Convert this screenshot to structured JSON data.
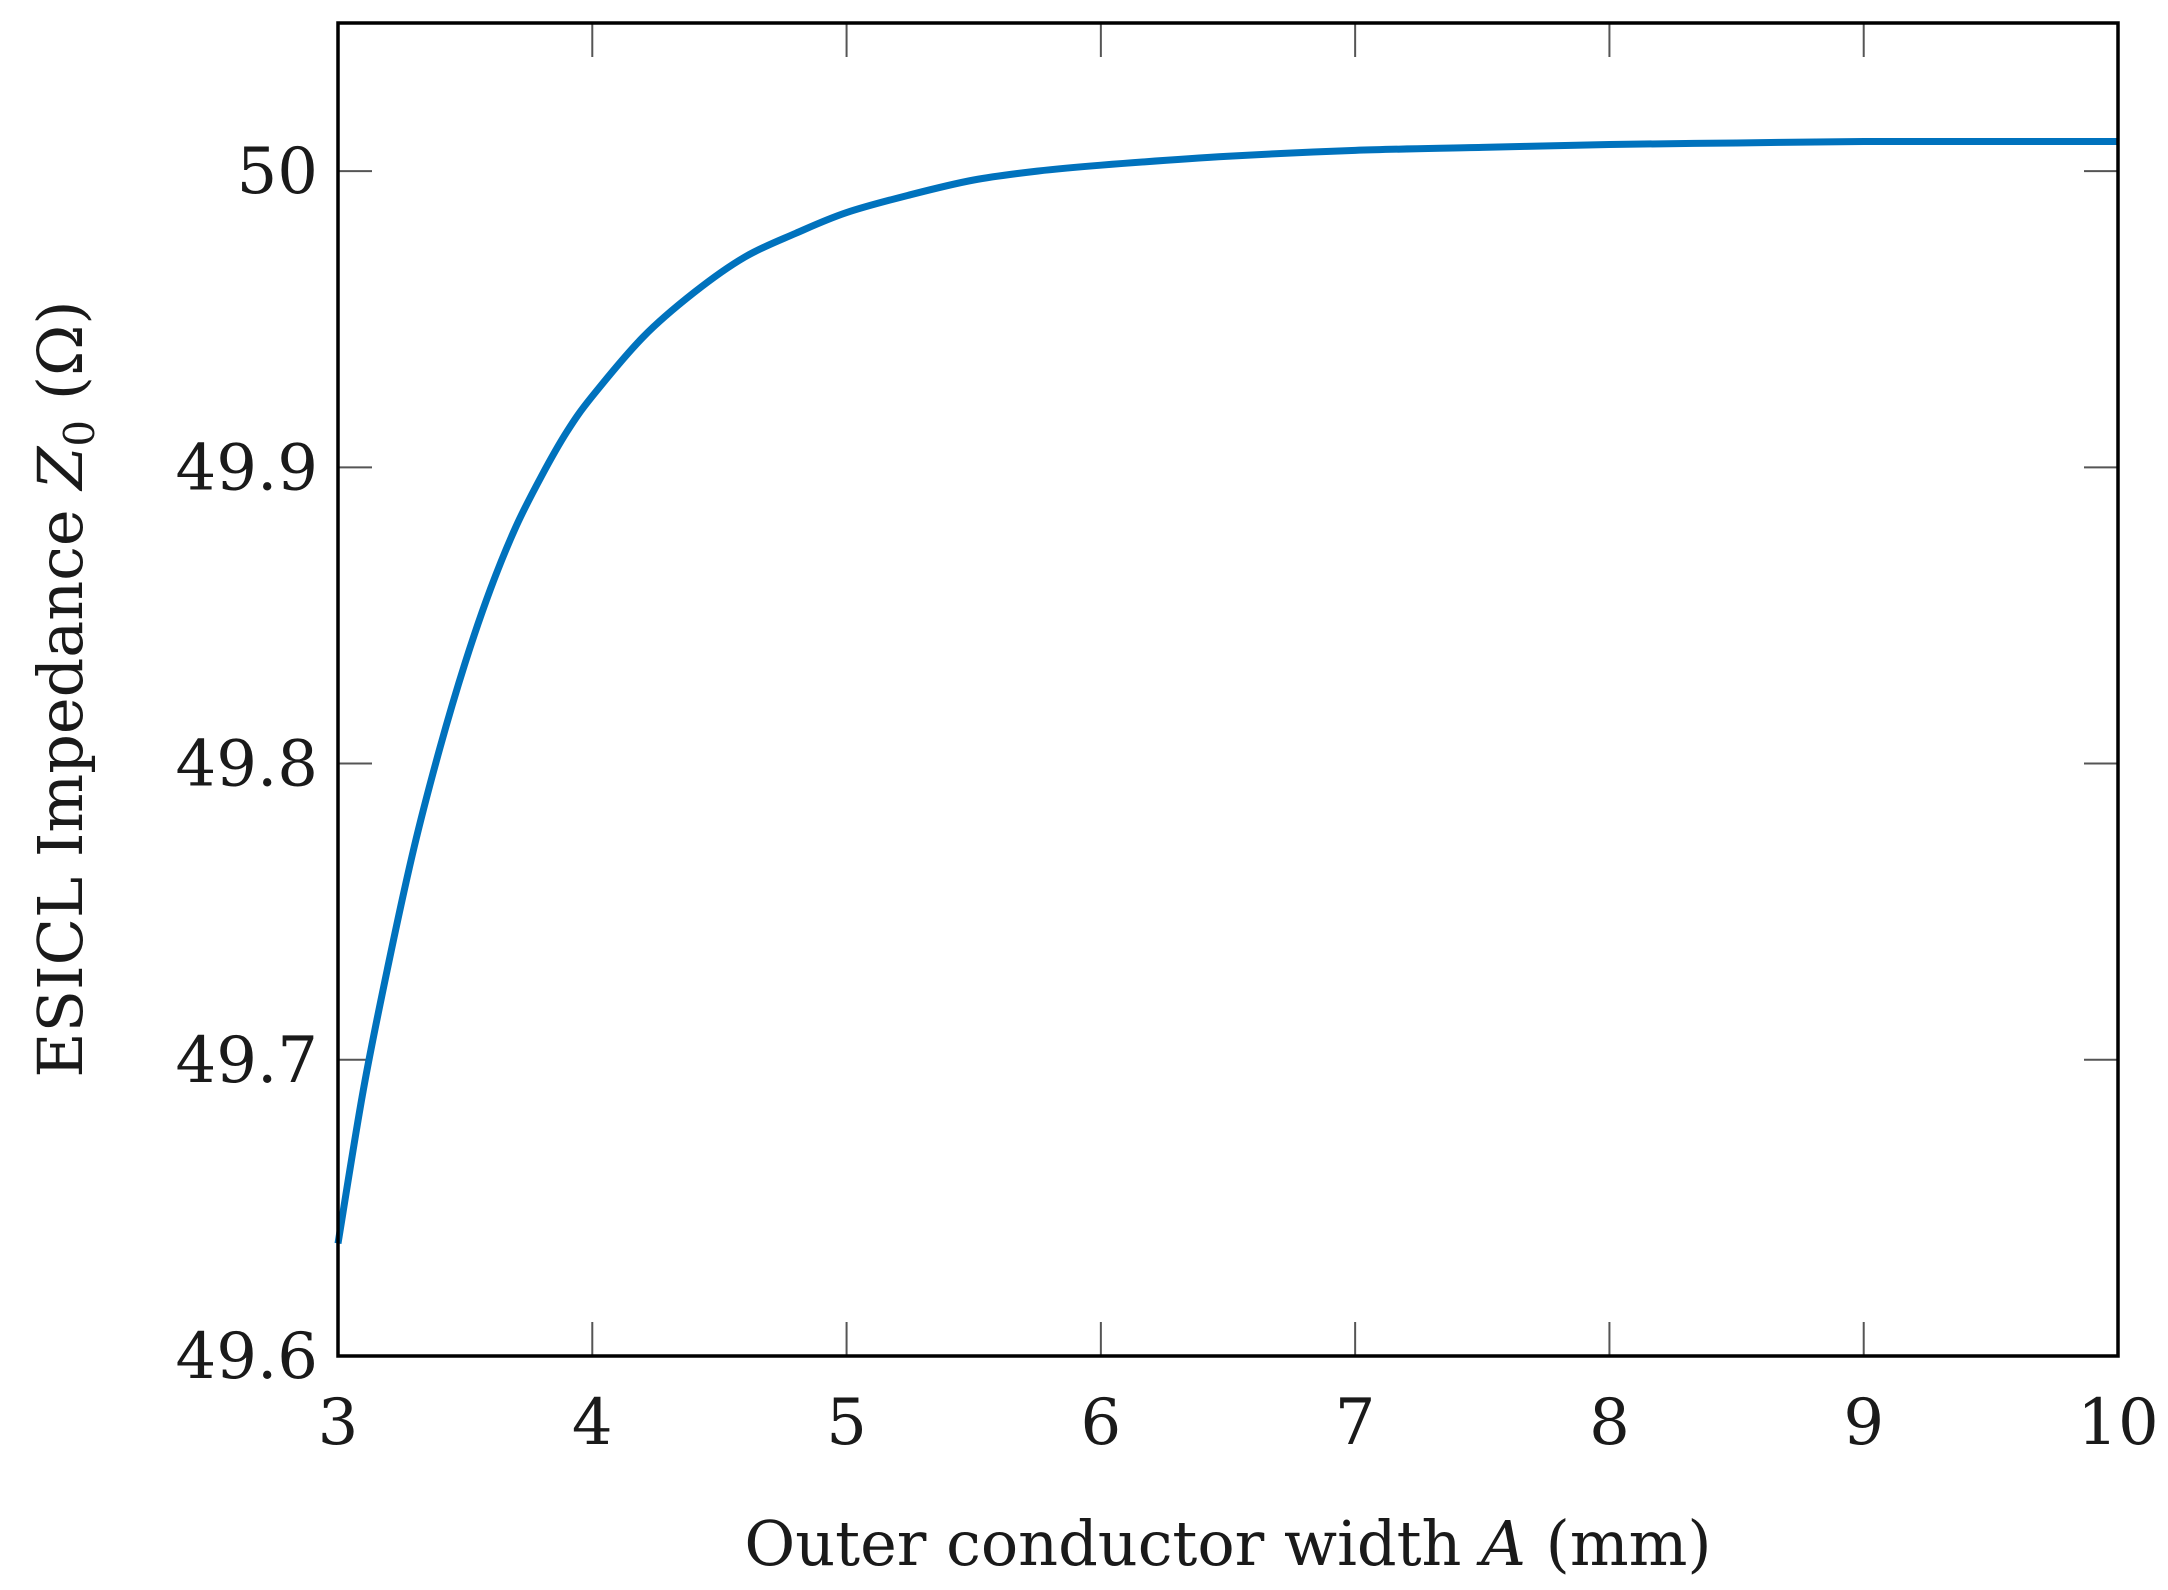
{
  "chart_data": {
    "type": "line",
    "title": "",
    "xlabel": {
      "prefix": "Outer conductor width ",
      "symbol": "A",
      "suffix": " (mm)"
    },
    "ylabel": {
      "prefix": "ESICL Impedance ",
      "symbol": "Z",
      "subscript": "0",
      "suffix": " (Ω)"
    },
    "xlim": [
      3,
      10
    ],
    "ylim": [
      49.6,
      50.05
    ],
    "xticks": [
      3,
      4,
      5,
      6,
      7,
      8,
      9,
      10
    ],
    "xtick_labels": [
      "3",
      "4",
      "5",
      "6",
      "7",
      "8",
      "9",
      "10"
    ],
    "yticks": [
      49.6,
      49.7,
      49.8,
      49.9,
      50.0
    ],
    "ytick_labels": [
      "49.6",
      "49.7",
      "49.8",
      "49.9",
      "50"
    ],
    "grid": false,
    "legend": "none",
    "series": [
      {
        "color": "#0072BD",
        "x": [
          3.0,
          3.1,
          3.2,
          3.3,
          3.4,
          3.5,
          3.6,
          3.7,
          3.8,
          3.9,
          4.0,
          4.2,
          4.4,
          4.6,
          4.8,
          5.0,
          5.25,
          5.5,
          5.75,
          6.0,
          6.5,
          7.0,
          7.5,
          8.0,
          8.5,
          9.0,
          9.5,
          10.0
        ],
        "y": [
          49.638,
          49.69,
          49.733,
          49.772,
          49.805,
          49.834,
          49.859,
          49.88,
          49.897,
          49.912,
          49.924,
          49.944,
          49.959,
          49.971,
          49.979,
          49.986,
          49.992,
          49.997,
          50.0,
          50.002,
          50.005,
          50.007,
          50.008,
          50.009,
          50.0095,
          50.01,
          50.01,
          50.01
        ]
      }
    ]
  }
}
